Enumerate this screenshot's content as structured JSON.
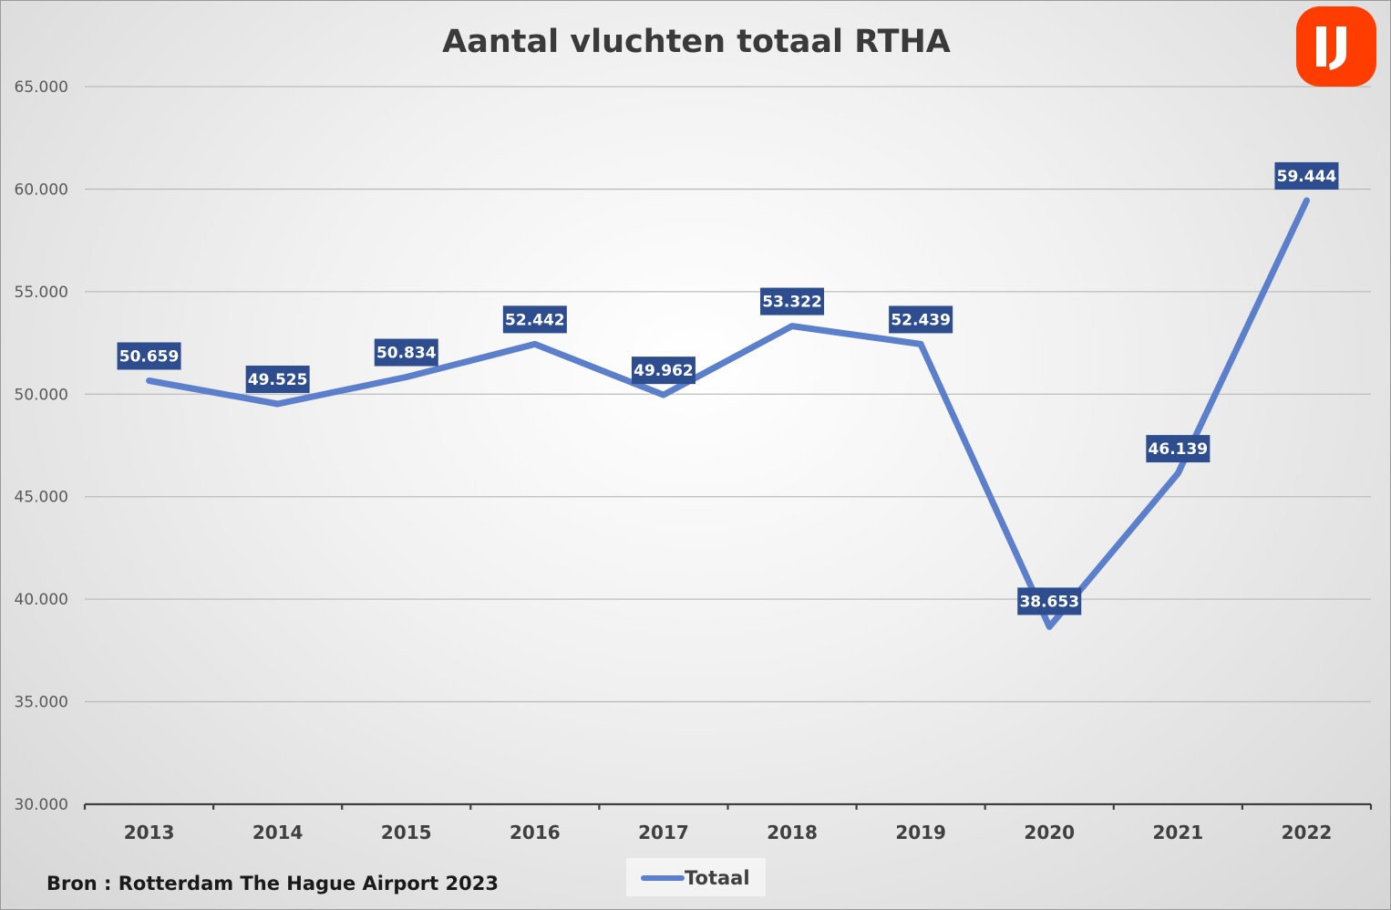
{
  "chart_data": {
    "type": "line",
    "title": "Aantal vluchten totaal RTHA",
    "categories": [
      "2013",
      "2014",
      "2015",
      "2016",
      "2017",
      "2018",
      "2019",
      "2020",
      "2021",
      "2022"
    ],
    "series": [
      {
        "name": "Totaal",
        "values": [
          50659,
          49525,
          50834,
          52442,
          49962,
          53322,
          52439,
          38653,
          46139,
          59444
        ],
        "labels": [
          "50.659",
          "49.525",
          "50.834",
          "52.442",
          "49.962",
          "53.322",
          "52.439",
          "38.653",
          "46.139",
          "59.444"
        ],
        "color": "#5b7fcb"
      }
    ],
    "ylim": [
      30000,
      65000
    ],
    "yticks": [
      30000,
      35000,
      40000,
      45000,
      50000,
      55000,
      60000,
      65000
    ],
    "ytick_labels": [
      "30.000",
      "35.000",
      "40.000",
      "45.000",
      "50.000",
      "55.000",
      "60.000",
      "65.000"
    ],
    "grid": true,
    "legend_position": "bottom",
    "data_label_color": "#2e4d8f",
    "source_note": "Bron : Rotterdam The Hague Airport 2023"
  },
  "logo": {
    "color": "#ff3d00"
  }
}
